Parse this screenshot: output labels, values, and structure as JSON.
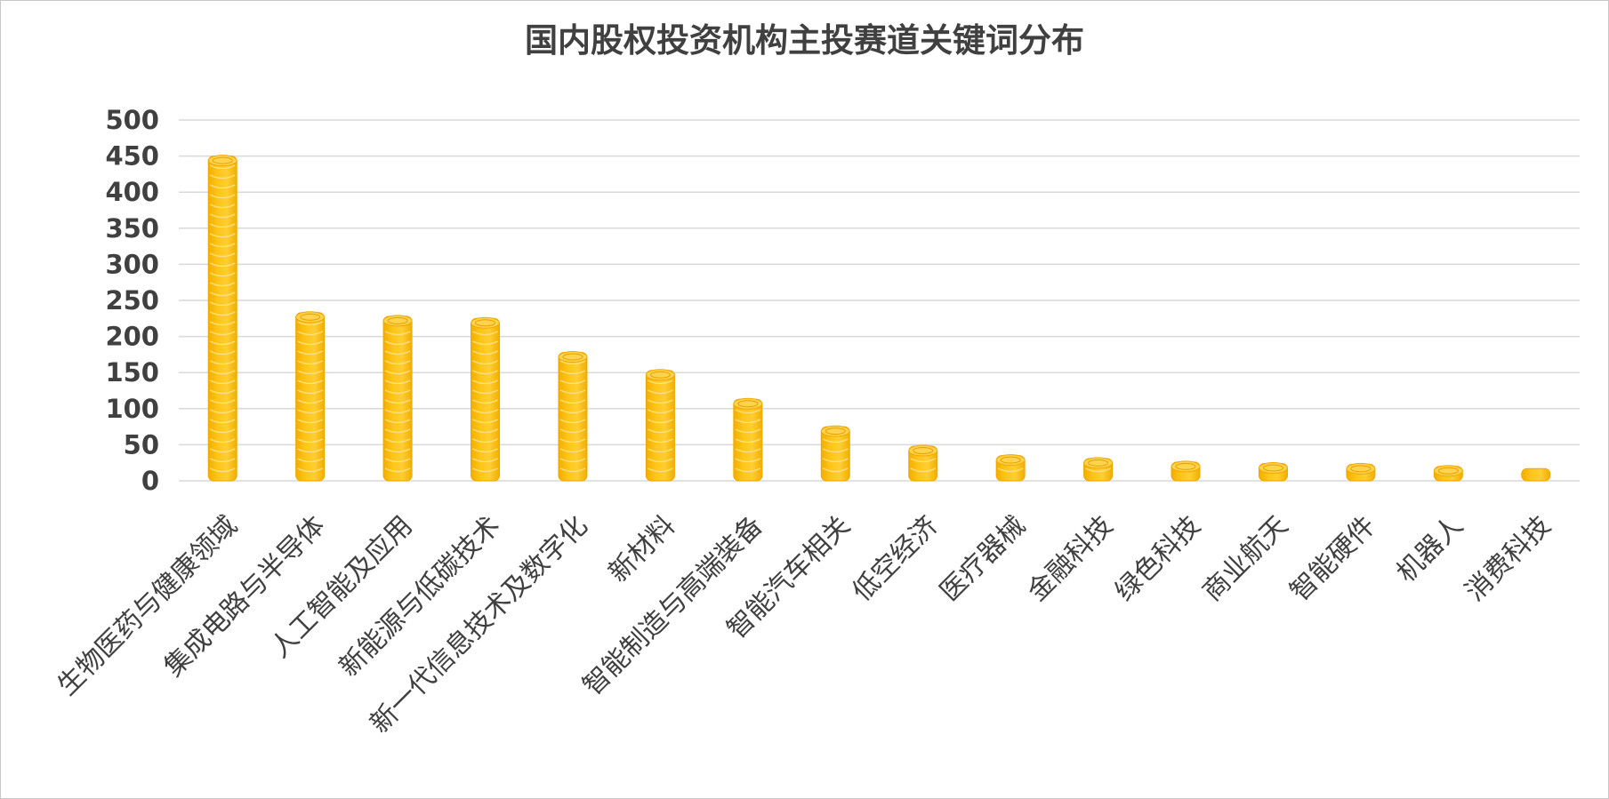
{
  "chart_data": {
    "type": "bar",
    "title": "国内股权投资机构主投赛道关键词分布",
    "xlabel": "",
    "ylabel": "",
    "ylim": [
      0,
      500
    ],
    "yticks": [
      0,
      50,
      100,
      150,
      200,
      250,
      300,
      350,
      400,
      450,
      500
    ],
    "grid": true,
    "legend": "none",
    "bar_style": "stacked-coins",
    "colors": {
      "coin": "#FFC000",
      "coin_edge": "#F0A800",
      "coin_top": "#FFD34D",
      "grid": "#d9d9d9",
      "text": "#404040"
    },
    "categories": [
      "生物医药与健康领域",
      "集成电路与半导体",
      "人工智能及应用",
      "新能源与低碳技术",
      "新一代信息技术及数字化",
      "新材料",
      "智能制造与高端装备",
      "智能汽车相关",
      "低空经济",
      "医疗器械",
      "金融科技",
      "绿色科技",
      "商业航天",
      "智能硬件",
      "机器人",
      "消费科技"
    ],
    "values": [
      450,
      233,
      228,
      225,
      178,
      153,
      113,
      75,
      48,
      35,
      31,
      26,
      24,
      23,
      20,
      17
    ]
  }
}
